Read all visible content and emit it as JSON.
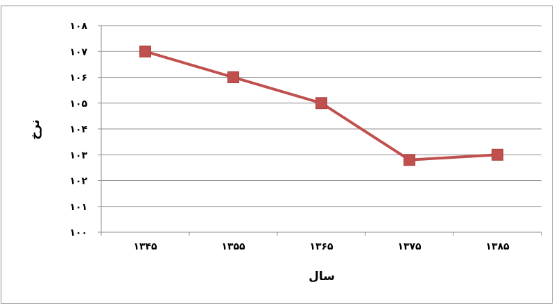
{
  "chart_data": {
    "type": "line",
    "title": "",
    "xlabel": "سال",
    "ylabel": "نرخ",
    "categories": [
      "۱۳۴۵",
      "۱۳۵۵",
      "۱۳۶۵",
      "۱۳۷۵",
      "۱۳۸۵"
    ],
    "series": [
      {
        "values": [
          107,
          106,
          105,
          102.8,
          103
        ],
        "color": "#c0504d",
        "marker": "square"
      }
    ],
    "ylim": [
      100,
      108
    ],
    "yticks": [
      100,
      101,
      102,
      103,
      104,
      105,
      106,
      107,
      108
    ],
    "ytick_labels": [
      "۱۰۰",
      "۱۰۱",
      "۱۰۲",
      "۱۰۳",
      "۱۰۴",
      "۱۰۵",
      "۱۰۶",
      "۱۰۷",
      "۱۰۸"
    ],
    "grid": true,
    "legend": false,
    "gridline_color": "#8c8c8c",
    "axis_color": "#8c8c8c"
  }
}
